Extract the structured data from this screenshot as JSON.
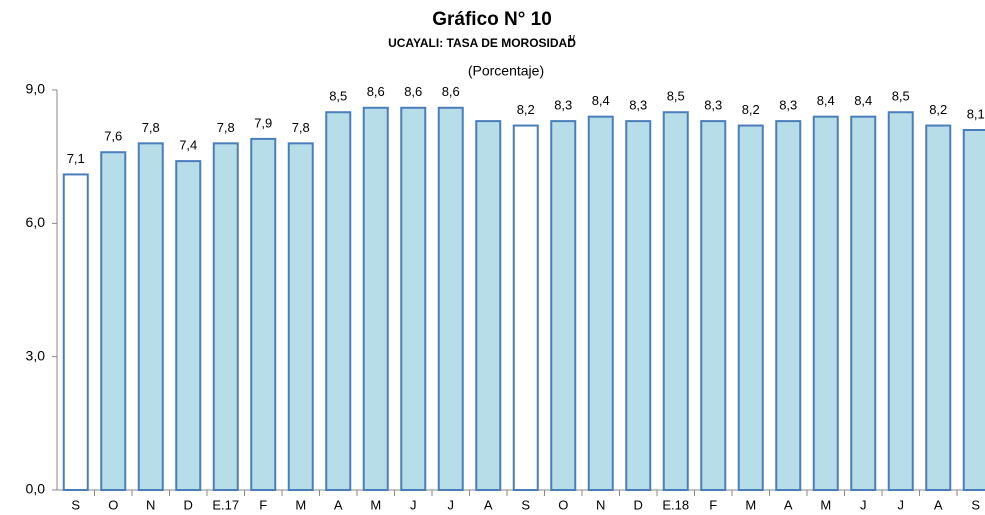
{
  "chart_data": {
    "type": "bar",
    "title": "Gráfico N° 10",
    "subtitle": "UCAYALI: TASA DE MOROSIDAD",
    "subtitle_note": "1/",
    "unit": "(Porcentaje)",
    "categories": [
      "S",
      "O",
      "N",
      "D",
      "E.17",
      "F",
      "M",
      "A",
      "M",
      "J",
      "J",
      "A",
      "S",
      "O",
      "N",
      "D",
      "E.18",
      "F",
      "M",
      "A",
      "M",
      "J",
      "J",
      "A",
      "S"
    ],
    "values": [
      7.1,
      7.6,
      7.8,
      7.4,
      7.8,
      7.9,
      7.8,
      8.5,
      8.6,
      8.6,
      8.6,
      8.3,
      8.2,
      8.3,
      8.4,
      8.3,
      8.5,
      8.3,
      8.2,
      8.3,
      8.4,
      8.4,
      8.5,
      8.2,
      8.1
    ],
    "value_labels": [
      "7,1",
      "7,6",
      "7,8",
      "7,4",
      "7,8",
      "7,9",
      "7,8",
      "8,5",
      "8,6",
      "8,6",
      "8,6",
      null,
      "8,2",
      "8,3",
      "8,4",
      "8,3",
      "8,5",
      "8,3",
      "8,2",
      "8,3",
      "8,4",
      "8,4",
      "8,5",
      "8,2",
      "8,1"
    ],
    "colors": [
      "#ffffff",
      "#b7dde8",
      "#b7dde8",
      "#b7dde8",
      "#b7dde8",
      "#b7dde8",
      "#b7dde8",
      "#b7dde8",
      "#b7dde8",
      "#b7dde8",
      "#b7dde8",
      "#b7dde8",
      "#ffffff",
      "#b7dde8",
      "#b7dde8",
      "#b7dde8",
      "#b7dde8",
      "#b7dde8",
      "#b7dde8",
      "#b7dde8",
      "#b7dde8",
      "#b7dde8",
      "#b7dde8",
      "#b7dde8",
      "#b7dde8"
    ],
    "edge_color": "#4a7ebb",
    "ylim": [
      0,
      9
    ],
    "yticks": [
      {
        "value": 0,
        "label": "0,0"
      },
      {
        "value": 3,
        "label": "3,0"
      },
      {
        "value": 6,
        "label": "6,0"
      },
      {
        "value": 9,
        "label": "9,0"
      }
    ],
    "grid": false
  }
}
